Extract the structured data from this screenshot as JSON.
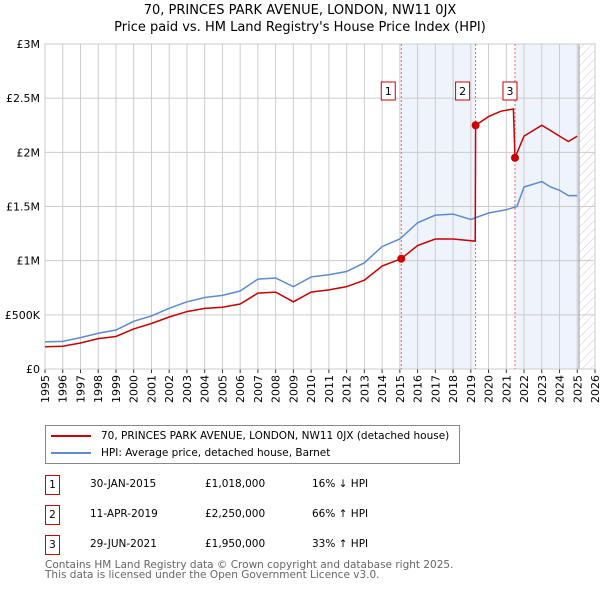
{
  "chart_data": {
    "type": "line",
    "title": "70, PRINCES PARK AVENUE, LONDON, NW11 0JX",
    "subtitle": "Price paid vs. HM Land Registry's House Price Index (HPI)",
    "xlim": [
      1995,
      2026
    ],
    "ylim": [
      0,
      3000000
    ],
    "x_ticks": [
      "1995",
      "1996",
      "1997",
      "1998",
      "1999",
      "2000",
      "2001",
      "2002",
      "2003",
      "2004",
      "2005",
      "2006",
      "2007",
      "2008",
      "2009",
      "2010",
      "2011",
      "2012",
      "2013",
      "2014",
      "2015",
      "2016",
      "2017",
      "2018",
      "2019",
      "2020",
      "2021",
      "2022",
      "2023",
      "2024",
      "2025",
      "2026"
    ],
    "y_ticks": [
      {
        "v": 0,
        "label": "£0"
      },
      {
        "v": 500000,
        "label": "£500K"
      },
      {
        "v": 1000000,
        "label": "£1M"
      },
      {
        "v": 1500000,
        "label": "£1.5M"
      },
      {
        "v": 2000000,
        "label": "£2M"
      },
      {
        "v": 2500000,
        "label": "£2.5M"
      },
      {
        "v": 3000000,
        "label": "£3M"
      }
    ],
    "series": [
      {
        "name": "70, PRINCES PARK AVENUE, LONDON, NW11 0JX (detached house)",
        "color": "#cc0000",
        "x": [
          1995,
          1996,
          1997,
          1998,
          1999,
          2000,
          2001,
          2002,
          2003,
          2004,
          2005,
          2006,
          2007,
          2008,
          2009,
          2010,
          2011,
          2012,
          2013,
          2014,
          2015.08,
          2016,
          2017,
          2018,
          2019.25,
          2019.27,
          2020,
          2020.7,
          2021.4,
          2021.49,
          2022,
          2023,
          2023.5,
          2024,
          2024.5,
          2025
        ],
        "y": [
          205000,
          210000,
          240000,
          280000,
          300000,
          370000,
          420000,
          480000,
          530000,
          560000,
          570000,
          600000,
          700000,
          710000,
          620000,
          710000,
          730000,
          760000,
          820000,
          950000,
          1018000,
          1140000,
          1200000,
          1200000,
          1180000,
          2250000,
          2330000,
          2380000,
          2400000,
          1950000,
          2150000,
          2250000,
          2200000,
          2150000,
          2100000,
          2150000
        ]
      },
      {
        "name": "HPI: Average price, detached house, Barnet",
        "color": "#5b8bd0",
        "x": [
          1995,
          1996,
          1997,
          1998,
          1999,
          2000,
          2001,
          2002,
          2003,
          2004,
          2005,
          2006,
          2007,
          2008,
          2009,
          2010,
          2011,
          2012,
          2013,
          2014,
          2015,
          2016,
          2017,
          2018,
          2019,
          2020,
          2021,
          2021.6,
          2022,
          2023,
          2023.5,
          2024,
          2024.5,
          2025
        ],
        "y": [
          250000,
          255000,
          290000,
          330000,
          360000,
          440000,
          490000,
          560000,
          620000,
          660000,
          680000,
          720000,
          830000,
          840000,
          760000,
          850000,
          870000,
          900000,
          980000,
          1130000,
          1200000,
          1350000,
          1420000,
          1430000,
          1380000,
          1440000,
          1470000,
          1500000,
          1680000,
          1730000,
          1680000,
          1650000,
          1600000,
          1600000
        ]
      }
    ],
    "sales": [
      {
        "n": "1",
        "x": 2015.08,
        "y": 1018000,
        "date": "30-JAN-2015",
        "price": "£1,018,000",
        "hpi": "16% ↓ HPI"
      },
      {
        "n": "2",
        "x": 2019.27,
        "y": 2250000,
        "date": "11-APR-2019",
        "price": "£2,250,000",
        "hpi": "66% ↑ HPI"
      },
      {
        "n": "3",
        "x": 2021.49,
        "y": 1950000,
        "date": "29-JUN-2021",
        "price": "£1,950,000",
        "hpi": "33% ↑ HPI"
      }
    ],
    "legend_placement": "below"
  },
  "footer": {
    "line1": "Contains HM Land Registry data © Crown copyright and database right 2025.",
    "line2": "This data is licensed under the Open Government Licence v3.0."
  }
}
